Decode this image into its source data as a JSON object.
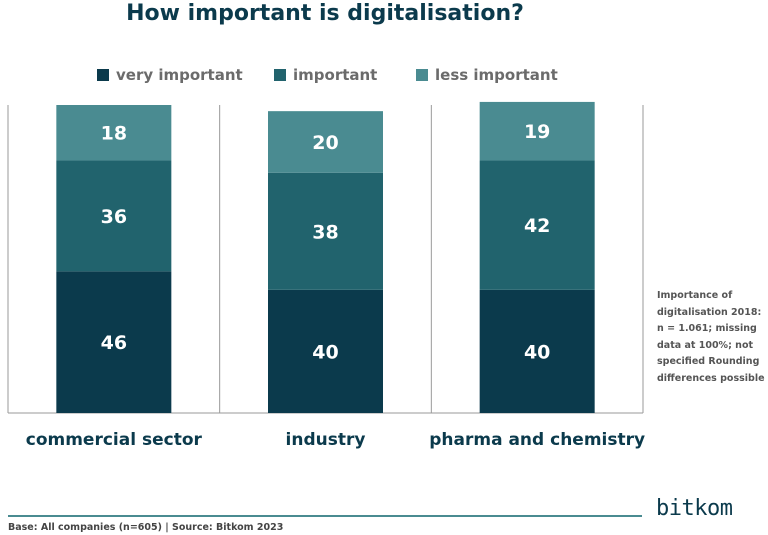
{
  "chart_data": {
    "type": "bar",
    "stacked": true,
    "title": "How important is digitalisation?",
    "categories": [
      "commercial sector",
      "industry",
      "pharma and chemistry"
    ],
    "series": [
      {
        "name": "very important",
        "values": [
          46,
          40,
          40
        ]
      },
      {
        "name": "important",
        "values": [
          36,
          38,
          42
        ]
      },
      {
        "name": "less important",
        "values": [
          18,
          20,
          19
        ]
      }
    ],
    "ylim": [
      0,
      100
    ],
    "xlabel": "",
    "ylabel": "",
    "legend_position": "top",
    "colors": [
      "#0b3a4c",
      "#21636d",
      "#4a8b91"
    ]
  },
  "note": "Importance of digitalisation 2018: n = 1.061; missing data at 100%; not specified Rounding differences possible",
  "footer": "Base: All companies (n=605) | Source: Bitkom 2023",
  "brand": "bitkom"
}
